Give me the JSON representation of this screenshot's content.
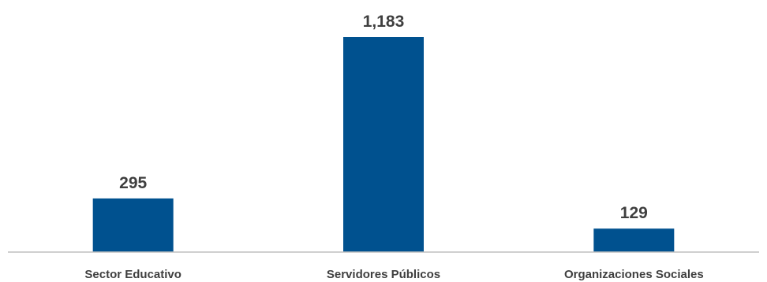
{
  "chart_data": {
    "type": "bar",
    "categories": [
      "Sector Educativo",
      "Servidores Públicos",
      "Organizaciones Sociales"
    ],
    "values": [
      295,
      1183,
      129
    ],
    "value_labels": [
      "295",
      "1,183",
      "129"
    ],
    "ylim": [
      0,
      1183
    ],
    "grid": false,
    "legend": "none",
    "bar_color": "#00518f",
    "axis_color": "#bfbfbf",
    "text_color": "#3f3f3f"
  }
}
